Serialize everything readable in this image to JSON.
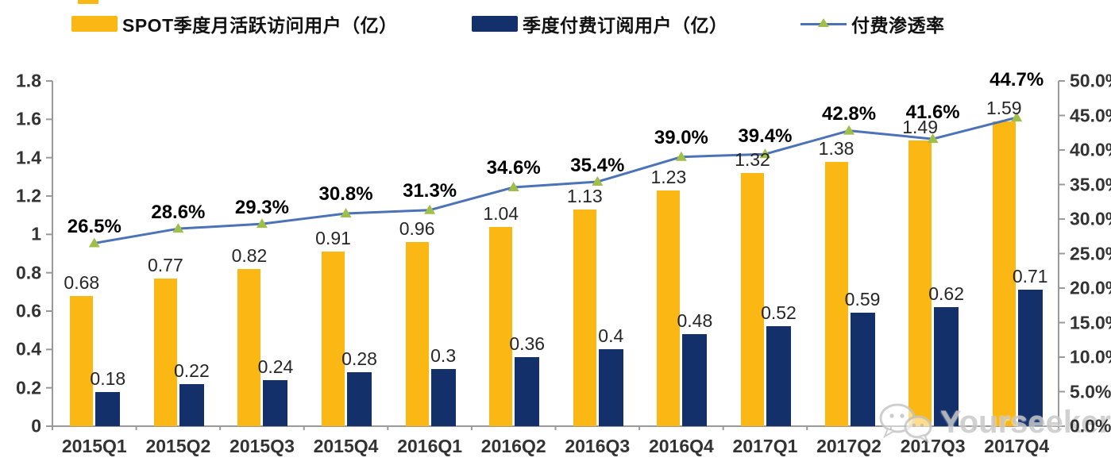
{
  "legend": [
    {
      "label": "SPOT季度月活跃访问用户（亿）",
      "color": "#FBB713",
      "type": "bar"
    },
    {
      "label": "季度付费订阅用户（亿）",
      "color": "#14306B",
      "type": "bar"
    },
    {
      "label": "付费渗透率",
      "color": "#4C72B8",
      "marker_color": "#A0BE4A",
      "type": "line"
    }
  ],
  "colors": {
    "mau_bar": "#FBB713",
    "subs_bar": "#14306B",
    "line": "#4C72B8",
    "marker": "#A0BE4A",
    "axis": "#999999",
    "tick_text": "#333333",
    "watermark": "#c9c9c9"
  },
  "chart_data": {
    "type": "bar",
    "subtype": "grouped-bars-with-line",
    "categories": [
      "2015Q1",
      "2015Q2",
      "2015Q3",
      "2015Q4",
      "2016Q1",
      "2016Q2",
      "2016Q3",
      "2016Q4",
      "2017Q1",
      "2017Q2",
      "2017Q3",
      "2017Q4"
    ],
    "series": [
      {
        "name": "SPOT季度月活跃访问用户（亿）",
        "type": "bar",
        "axis": "left",
        "color": "#FBB713",
        "values": [
          0.68,
          0.77,
          0.82,
          0.91,
          0.96,
          1.04,
          1.13,
          1.23,
          1.32,
          1.38,
          1.49,
          1.59
        ],
        "labels": [
          "0.68",
          "0.77",
          "0.82",
          "0.91",
          "0.96",
          "1.04",
          "1.13",
          "1.23",
          "1.32",
          "1.38",
          "1.49",
          "1.59"
        ]
      },
      {
        "name": "季度付费订阅用户（亿）",
        "type": "bar",
        "axis": "left",
        "color": "#14306B",
        "values": [
          0.18,
          0.22,
          0.24,
          0.28,
          0.3,
          0.36,
          0.4,
          0.48,
          0.52,
          0.59,
          0.62,
          0.71
        ],
        "labels": [
          "0.18",
          "0.22",
          "0.24",
          "0.28",
          "0.3",
          "0.36",
          "0.4",
          "0.48",
          "0.52",
          "0.59",
          "0.62",
          "0.71"
        ]
      },
      {
        "name": "付费渗透率",
        "type": "line",
        "axis": "right",
        "color": "#4C72B8",
        "marker": "triangle",
        "marker_color": "#A0BE4A",
        "values": [
          26.5,
          28.6,
          29.3,
          30.8,
          31.3,
          34.6,
          35.4,
          39.0,
          39.4,
          42.8,
          41.6,
          44.7
        ],
        "labels": [
          "26.5%",
          "28.6%",
          "29.3%",
          "30.8%",
          "31.3%",
          "34.6%",
          "35.4%",
          "39.0%",
          "39.4%",
          "42.8%",
          "41.6%",
          "44.7%"
        ]
      }
    ],
    "left_axis": {
      "min": 0,
      "max": 1.8,
      "ticks": [
        "0",
        "0.2",
        "0.4",
        "0.6",
        "0.8",
        "1",
        "1.2",
        "1.4",
        "1.6",
        "1.8"
      ]
    },
    "right_axis": {
      "min": 0,
      "max": 50,
      "ticks": [
        "0.0%",
        "5.0%",
        "10.0%",
        "15.0%",
        "20.0%",
        "25.0%",
        "30.0%",
        "35.0%",
        "40.0%",
        "45.0%",
        "50.0%"
      ]
    },
    "grid": false,
    "legend_position": "top",
    "pct_label_dy": [
      -34,
      -34,
      -34,
      -38,
      -38,
      -38,
      -34,
      -38,
      -36,
      -35,
      -47,
      -61
    ],
    "val_label_dy": -30
  },
  "watermark": {
    "icon": "wechat-icon",
    "text": "Yourseeker"
  }
}
